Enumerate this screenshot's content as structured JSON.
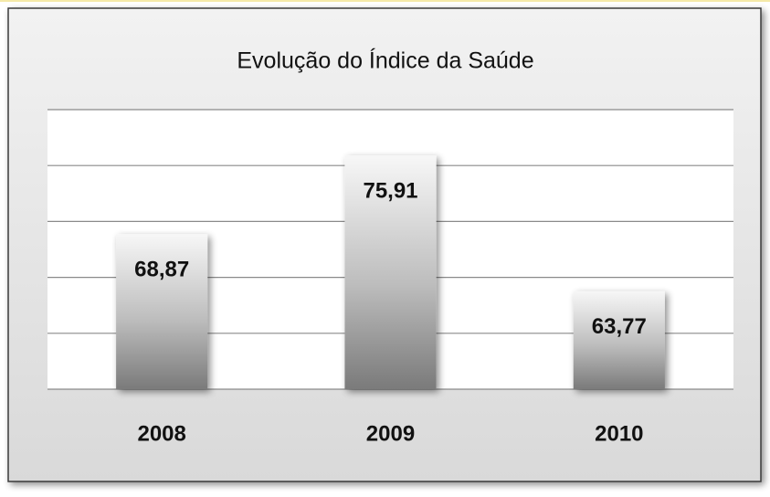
{
  "chart_data": {
    "type": "bar",
    "title": "Evolução do Índice da Saúde",
    "categories": [
      "2008",
      "2009",
      "2010"
    ],
    "values": [
      68.87,
      75.91,
      63.77
    ],
    "value_labels": [
      "68,87",
      "75,91",
      "63,77"
    ],
    "ylim": [
      55,
      80
    ],
    "yticks": [
      55,
      60,
      65,
      70,
      75,
      80
    ],
    "grid": true,
    "color": "#8c8c8c"
  }
}
